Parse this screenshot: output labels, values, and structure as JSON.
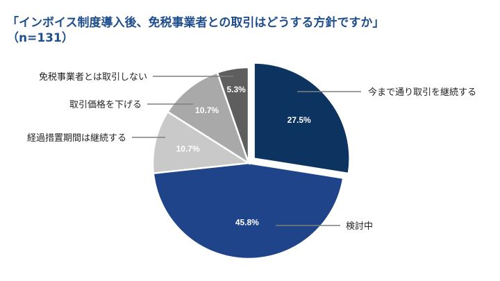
{
  "title_line1": "「インボイス制度導入後、免税事業者との取引はどうする方針ですか」",
  "title_line2": "（n=131）",
  "chart_data": {
    "type": "pie",
    "title": "「インボイス制度導入後、免税事業者との取引はどうする方針ですか」（n=131）",
    "slices": [
      {
        "label": "今まで通り取引を継続する",
        "value": 27.5,
        "value_label": "27.5%",
        "color": "#0d3461",
        "exploded": true
      },
      {
        "label": "検討中",
        "value": 45.8,
        "value_label": "45.8%",
        "color": "#1f4489",
        "exploded": false
      },
      {
        "label": "経過措置期間は継続する",
        "value": 10.7,
        "value_label": "10.7%",
        "color": "#c9c9c9",
        "exploded": false
      },
      {
        "label": "取引価格を下げる",
        "value": 10.7,
        "value_label": "10.7%",
        "color": "#a9a9a9",
        "exploded": false
      },
      {
        "label": "免税事業者とは取引しない",
        "value": 5.3,
        "value_label": "5.3%",
        "color": "#5e5e5e",
        "exploded": false
      }
    ]
  }
}
